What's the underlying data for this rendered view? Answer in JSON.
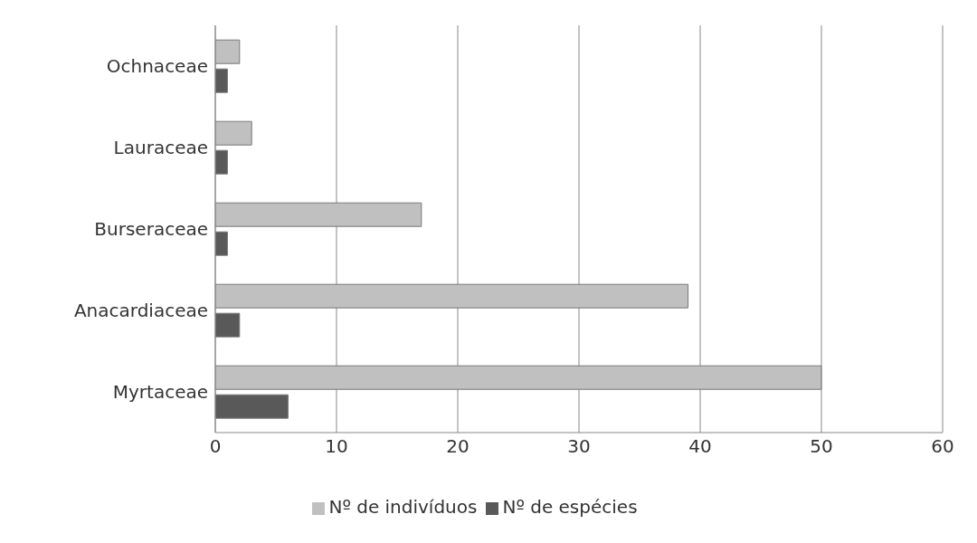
{
  "chart_data": {
    "type": "bar",
    "orientation": "horizontal",
    "categories": [
      "Ochnaceae",
      "Lauraceae",
      "Burseraceae",
      "Anacardiaceae",
      "Myrtaceae"
    ],
    "series": [
      {
        "name": "Nº de indivíduos",
        "color": "#c0c0c0",
        "values": [
          2,
          3,
          17,
          39,
          50
        ]
      },
      {
        "name": "Nº de espécies",
        "color": "#595959",
        "values": [
          1,
          1,
          1,
          2,
          6
        ]
      }
    ],
    "xlim": [
      0,
      60
    ],
    "xticks": [
      0,
      10,
      20,
      30,
      40,
      50,
      60
    ],
    "grid": "x",
    "legend": "bottom"
  }
}
